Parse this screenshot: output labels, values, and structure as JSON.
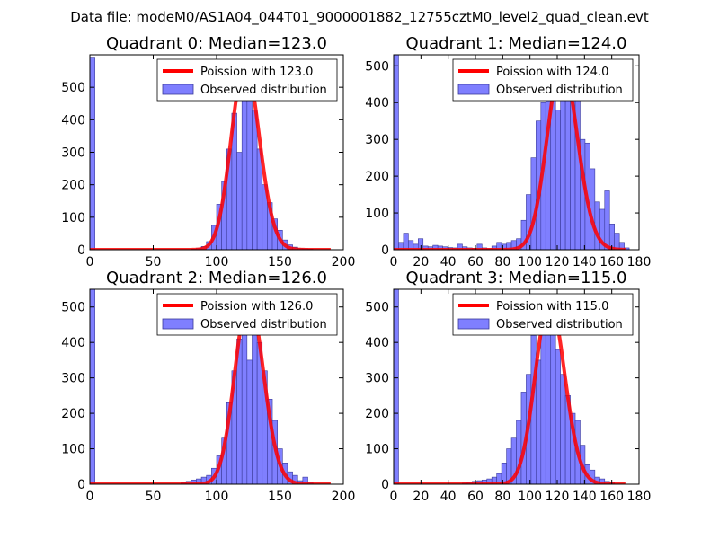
{
  "figure": {
    "title": "Data file: modeM0/AS1A04_044T01_9000001882_12755cztM0_level2_quad_clean.evt",
    "colors": {
      "curve": "#ff0000",
      "bar_fill": "#7f7fff",
      "bar_edge": "#3a3a99"
    }
  },
  "chart_data": [
    {
      "type": "bar",
      "title": "Quadrant 0: Median=123.0",
      "xlim": [
        0,
        200
      ],
      "ylim": [
        0,
        600
      ],
      "xticks": [
        0,
        50,
        100,
        150,
        200
      ],
      "yticks": [
        0,
        100,
        200,
        300,
        400,
        500
      ],
      "bin_width": 4,
      "bins": [
        [
          0,
          590
        ],
        [
          80,
          2
        ],
        [
          84,
          5
        ],
        [
          88,
          10
        ],
        [
          92,
          25
        ],
        [
          96,
          75
        ],
        [
          100,
          140
        ],
        [
          104,
          210
        ],
        [
          108,
          310
        ],
        [
          112,
          420
        ],
        [
          116,
          300
        ],
        [
          120,
          540
        ],
        [
          124,
          520
        ],
        [
          128,
          430
        ],
        [
          132,
          310
        ],
        [
          136,
          200
        ],
        [
          140,
          145
        ],
        [
          144,
          95
        ],
        [
          148,
          60
        ],
        [
          152,
          30
        ],
        [
          156,
          15
        ],
        [
          160,
          8
        ],
        [
          164,
          4
        ],
        [
          168,
          3
        ],
        [
          172,
          2
        ]
      ],
      "curve": {
        "label": "Poission with 123.0",
        "mean": 123.0,
        "peak": 570,
        "xmin": 0,
        "xmax": 190
      },
      "legend": {
        "curve_label": "Poission with 123.0",
        "bars_label": "Observed distribution",
        "position": "top-right"
      }
    },
    {
      "type": "bar",
      "title": "Quadrant 1: Median=124.0",
      "xlim": [
        0,
        180
      ],
      "ylim": [
        0,
        530
      ],
      "xticks": [
        0,
        20,
        40,
        60,
        80,
        100,
        120,
        140,
        160,
        180
      ],
      "yticks": [
        0,
        100,
        200,
        300,
        400,
        500
      ],
      "bin_width": 3.6,
      "bins": [
        [
          0,
          530
        ],
        [
          3.6,
          20
        ],
        [
          7.2,
          45
        ],
        [
          10.8,
          25
        ],
        [
          14.4,
          15
        ],
        [
          18,
          30
        ],
        [
          21.6,
          10
        ],
        [
          25.2,
          8
        ],
        [
          28.8,
          12
        ],
        [
          32.4,
          10
        ],
        [
          36,
          8
        ],
        [
          39.6,
          6
        ],
        [
          43.2,
          5
        ],
        [
          46.8,
          15
        ],
        [
          50.4,
          8
        ],
        [
          54,
          5
        ],
        [
          57.6,
          4
        ],
        [
          61.2,
          15
        ],
        [
          64.8,
          5
        ],
        [
          68.4,
          3
        ],
        [
          72,
          10
        ],
        [
          75.6,
          20
        ],
        [
          79.2,
          15
        ],
        [
          82.8,
          20
        ],
        [
          86.4,
          25
        ],
        [
          90,
          30
        ],
        [
          93.6,
          80
        ],
        [
          97.2,
          150
        ],
        [
          100.8,
          250
        ],
        [
          104.4,
          350
        ],
        [
          108,
          400
        ],
        [
          111.6,
          420
        ],
        [
          115.2,
          470
        ],
        [
          118.8,
          380
        ],
        [
          122.4,
          460
        ],
        [
          126,
          420
        ],
        [
          129.6,
          510
        ],
        [
          133.2,
          420
        ],
        [
          136.8,
          300
        ],
        [
          140.4,
          290
        ],
        [
          144,
          220
        ],
        [
          147.6,
          130
        ],
        [
          151.2,
          110
        ],
        [
          154.8,
          160
        ],
        [
          158.4,
          70
        ],
        [
          162,
          45
        ],
        [
          165.6,
          20
        ],
        [
          169.2,
          5
        ]
      ],
      "curve": {
        "label": "Poission with 124.0",
        "mean": 124.0,
        "peak": 505,
        "xmin": 0,
        "xmax": 170
      },
      "legend": {
        "curve_label": "Poission with 124.0",
        "bars_label": "Observed distribution",
        "position": "top-right"
      }
    },
    {
      "type": "bar",
      "title": "Quadrant 2: Median=126.0",
      "xlim": [
        0,
        200
      ],
      "ylim": [
        0,
        550
      ],
      "xticks": [
        0,
        50,
        100,
        150,
        200
      ],
      "yticks": [
        0,
        100,
        200,
        300,
        400,
        500
      ],
      "bin_width": 4,
      "bins": [
        [
          0,
          550
        ],
        [
          72,
          4
        ],
        [
          76,
          8
        ],
        [
          80,
          12
        ],
        [
          84,
          15
        ],
        [
          88,
          20
        ],
        [
          92,
          25
        ],
        [
          96,
          45
        ],
        [
          100,
          80
        ],
        [
          104,
          130
        ],
        [
          108,
          230
        ],
        [
          112,
          320
        ],
        [
          116,
          410
        ],
        [
          120,
          460
        ],
        [
          124,
          350
        ],
        [
          128,
          480
        ],
        [
          132,
          400
        ],
        [
          136,
          320
        ],
        [
          140,
          240
        ],
        [
          144,
          180
        ],
        [
          148,
          100
        ],
        [
          152,
          60
        ],
        [
          156,
          35
        ],
        [
          160,
          25
        ],
        [
          164,
          10
        ],
        [
          168,
          20
        ],
        [
          172,
          5
        ]
      ],
      "curve": {
        "label": "Poission with 126.0",
        "mean": 126.0,
        "peak": 525,
        "xmin": 0,
        "xmax": 190
      },
      "legend": {
        "curve_label": "Poission with 126.0",
        "bars_label": "Observed distribution",
        "position": "top-right"
      }
    },
    {
      "type": "bar",
      "title": "Quadrant 3: Median=115.0",
      "xlim": [
        0,
        180
      ],
      "ylim": [
        0,
        550
      ],
      "xticks": [
        0,
        20,
        40,
        60,
        80,
        100,
        120,
        140,
        160,
        180
      ],
      "yticks": [
        0,
        100,
        200,
        300,
        400,
        500
      ],
      "bin_width": 3.6,
      "bins": [
        [
          0,
          550
        ],
        [
          50.4,
          3
        ],
        [
          54,
          5
        ],
        [
          57.6,
          8
        ],
        [
          61.2,
          10
        ],
        [
          64.8,
          12
        ],
        [
          68.4,
          15
        ],
        [
          72,
          20
        ],
        [
          75.6,
          30
        ],
        [
          79.2,
          60
        ],
        [
          82.8,
          100
        ],
        [
          86.4,
          130
        ],
        [
          90,
          180
        ],
        [
          93.6,
          260
        ],
        [
          97.2,
          310
        ],
        [
          100.8,
          420
        ],
        [
          104.4,
          350
        ],
        [
          108,
          430
        ],
        [
          111.6,
          510
        ],
        [
          115.2,
          440
        ],
        [
          118.8,
          380
        ],
        [
          122.4,
          310
        ],
        [
          126,
          250
        ],
        [
          129.6,
          200
        ],
        [
          133.2,
          180
        ],
        [
          136.8,
          110
        ],
        [
          140.4,
          55
        ],
        [
          144,
          40
        ],
        [
          147.6,
          20
        ],
        [
          151.2,
          15
        ],
        [
          154.8,
          8
        ],
        [
          158.4,
          5
        ]
      ],
      "curve": {
        "label": "Poission with 115.0",
        "mean": 115.0,
        "peak": 515,
        "xmin": 0,
        "xmax": 170
      },
      "legend": {
        "curve_label": "Poission with 115.0",
        "bars_label": "Observed distribution",
        "position": "top-right"
      }
    }
  ]
}
